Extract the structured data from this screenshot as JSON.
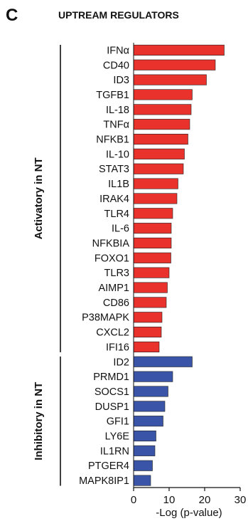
{
  "panel_letter": "C",
  "chart_data": {
    "type": "bar",
    "orientation": "horizontal",
    "title": "UPTREAM REGULATORS",
    "xlabel": "-Log (p-value)",
    "ylabel": "",
    "xlim": [
      0,
      30
    ],
    "xticks": [
      0,
      10,
      20,
      30
    ],
    "grid": false,
    "groups": [
      {
        "name": "Activatory in NT",
        "color": "#e8322b",
        "categories": [
          "IFNα",
          "CD40",
          "ID3",
          "TGFB1",
          "IL-18",
          "TNFα",
          "NFKB1",
          "IL-10",
          "STAT3",
          "IL1B",
          "IRAK4",
          "TLR4",
          "IL-6",
          "NFKBIA",
          "FOXO1",
          "TLR3",
          "AIMP1",
          "CD86",
          "P38MAPK",
          "CXCL2",
          "IFI16"
        ],
        "values": [
          25.5,
          23.0,
          20.5,
          16.5,
          16.2,
          15.8,
          15.3,
          14.3,
          14.0,
          12.5,
          12.2,
          11.0,
          10.6,
          10.6,
          10.5,
          10.0,
          9.5,
          9.2,
          8.0,
          7.8,
          7.2
        ]
      },
      {
        "name": "Inhibitory in NT",
        "color": "#3a55a8",
        "categories": [
          "ID2",
          "PRMD1",
          "SOCS1",
          "DUSP1",
          "GFI1",
          "LY6E",
          "IL1RN",
          "PTGER4",
          "MAPK8IP1"
        ],
        "values": [
          16.5,
          11.0,
          9.7,
          8.8,
          8.3,
          6.3,
          6.0,
          5.3,
          4.8
        ]
      }
    ]
  }
}
